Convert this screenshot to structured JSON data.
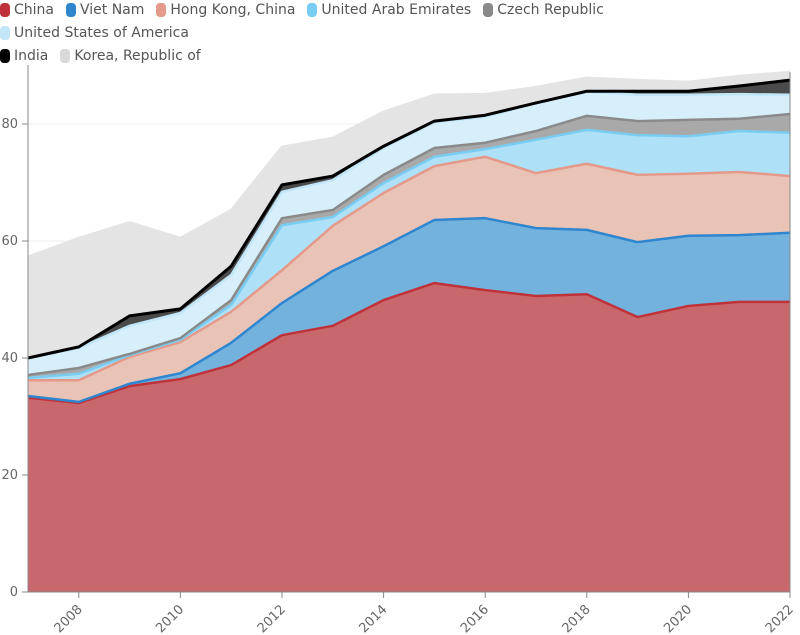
{
  "chart_data": {
    "type": "area",
    "stacked": true,
    "title": "",
    "xlabel": "",
    "ylabel": "",
    "x": [
      2007,
      2008,
      2009,
      2010,
      2011,
      2012,
      2013,
      2014,
      2015,
      2016,
      2017,
      2018,
      2019,
      2020,
      2021,
      2022
    ],
    "xticks": [
      "2008",
      "2010",
      "2012",
      "2014",
      "2016",
      "2018",
      "2020",
      "2022"
    ],
    "ylim": [
      0,
      90
    ],
    "yticks": [
      "0",
      "20",
      "40",
      "60",
      "80"
    ],
    "grid": true,
    "legend_position": "top-left",
    "series": [
      {
        "name": "China",
        "color": "#c9686c",
        "line": "#c0323a",
        "values": [
          33.2,
          32.3,
          35.2,
          36.4,
          38.8,
          43.9,
          45.5,
          49.9,
          52.8,
          51.6,
          50.6,
          50.9,
          47.0,
          48.9,
          49.6,
          49.6
        ]
      },
      {
        "name": "Viet Nam",
        "color": "#74b2de",
        "line": "#2f86cf",
        "values": [
          0.3,
          0.2,
          0.4,
          1.0,
          3.8,
          5.5,
          9.4,
          9.2,
          10.8,
          12.3,
          11.6,
          11.0,
          12.8,
          12.0,
          11.4,
          11.8
        ]
      },
      {
        "name": "Hong Kong, China",
        "color": "#eac3b7",
        "line": "#e49a8a",
        "values": [
          2.7,
          3.7,
          4.6,
          5.3,
          5.3,
          5.6,
          7.7,
          9.1,
          9.2,
          10.5,
          9.4,
          11.3,
          11.5,
          10.6,
          10.8,
          9.7
        ]
      },
      {
        "name": "United Arab Emirates",
        "color": "#aee0f7",
        "line": "#79cdf2",
        "values": [
          0.4,
          1.1,
          0.3,
          0.4,
          1.2,
          7.7,
          1.5,
          1.7,
          1.6,
          1.3,
          5.7,
          5.8,
          6.8,
          6.4,
          7.0,
          7.4
        ]
      },
      {
        "name": "Czech Republic",
        "color": "#a9a9a9",
        "line": "#8a8a8a",
        "values": [
          0.5,
          1.0,
          0.2,
          0.3,
          0.8,
          1.2,
          1.2,
          1.4,
          1.5,
          1.1,
          1.5,
          2.4,
          2.4,
          2.8,
          2.1,
          3.2
        ]
      },
      {
        "name": "United States of America",
        "color": "#d6effb",
        "line": "#c2e6f8",
        "values": [
          2.9,
          3.4,
          4.8,
          4.3,
          4.3,
          4.5,
          5.1,
          4.6,
          4.4,
          4.4,
          4.8,
          4.1,
          4.5,
          4.3,
          4.2,
          3.3
        ]
      },
      {
        "name": "India",
        "color": "#4a4a4a",
        "line": "#000000",
        "values": [
          0.0,
          0.2,
          1.7,
          0.7,
          1.5,
          1.2,
          0.7,
          0.3,
          0.2,
          0.3,
          0.0,
          0.1,
          0.6,
          0.6,
          1.4,
          2.5
        ]
      },
      {
        "name": "Korea, Republic of",
        "color": "#e4e4e4",
        "line": "#e4e4e4",
        "values": [
          17.3,
          18.6,
          16.0,
          12.1,
          9.6,
          6.5,
          6.5,
          5.9,
          4.5,
          3.6,
          2.7,
          2.3,
          1.9,
          1.6,
          1.7,
          1.4
        ]
      }
    ]
  }
}
